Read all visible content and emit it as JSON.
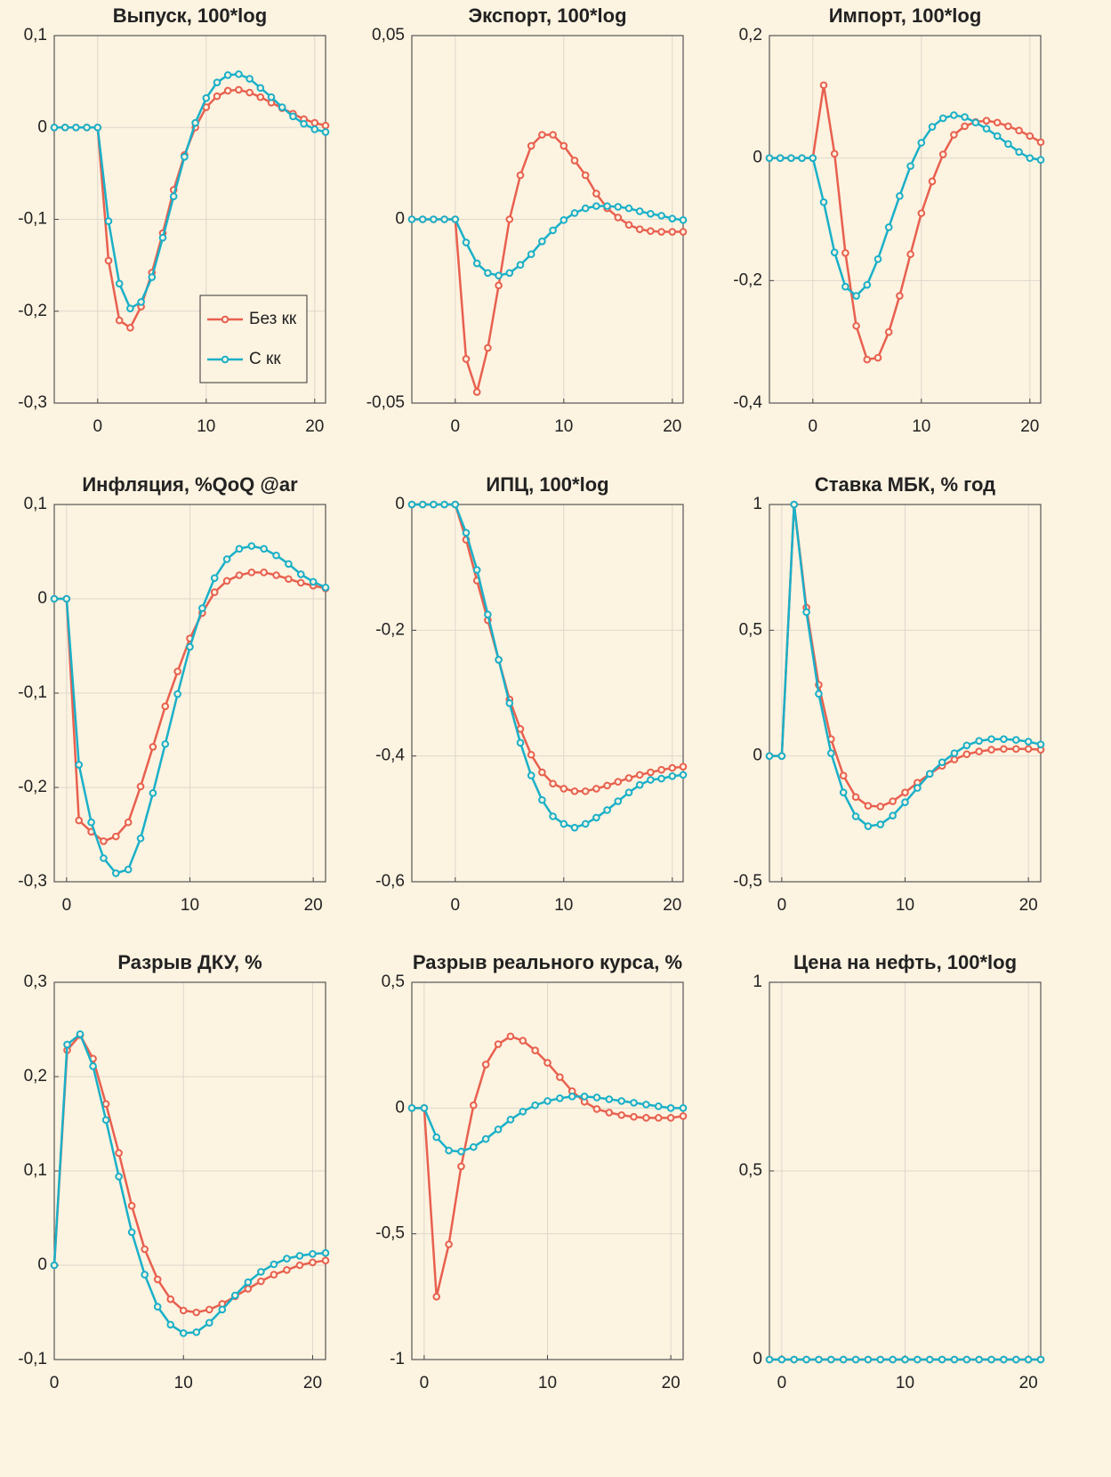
{
  "chart_data": [
    {
      "type": "line",
      "title": "Выпуск, 100*log",
      "x": [
        -4,
        -3,
        -2,
        -1,
        0,
        1,
        2,
        3,
        4,
        5,
        6,
        7,
        8,
        9,
        10,
        11,
        12,
        13,
        14,
        15,
        16,
        17,
        18,
        19,
        20,
        21
      ],
      "series": [
        {
          "name": "Без кк",
          "color": "#e8604f",
          "values": [
            0,
            0,
            0,
            0,
            0,
            -0.145,
            -0.21,
            -0.218,
            -0.195,
            -0.158,
            -0.115,
            -0.068,
            -0.03,
            0,
            0.022,
            0.034,
            0.04,
            0.041,
            0.038,
            0.033,
            0.027,
            0.021,
            0.015,
            0.009,
            0.005,
            0.002
          ]
        },
        {
          "name": "С кк",
          "color": "#1ab0c8",
          "values": [
            0,
            0,
            0,
            0,
            0,
            -0.102,
            -0.17,
            -0.197,
            -0.19,
            -0.163,
            -0.12,
            -0.075,
            -0.032,
            0.005,
            0.032,
            0.049,
            0.057,
            0.058,
            0.053,
            0.043,
            0.033,
            0.022,
            0.012,
            0.004,
            -0.002,
            -0.005
          ]
        }
      ],
      "xlim": [
        -4,
        21
      ],
      "xticks": [
        0,
        10,
        20
      ],
      "ylim": [
        -0.3,
        0.1
      ],
      "yticks": [
        {
          "value": -0.3,
          "label": "-0,3"
        },
        {
          "value": -0.2,
          "label": "-0,2"
        },
        {
          "value": -0.1,
          "label": "-0,1"
        },
        0,
        {
          "value": 0.1,
          "label": "0,1"
        }
      ],
      "grid": true,
      "legend": "lower right"
    },
    {
      "type": "line",
      "title": "Экспорт, 100*log",
      "x": [
        -4,
        -3,
        -2,
        -1,
        0,
        1,
        2,
        3,
        4,
        5,
        6,
        7,
        8,
        9,
        10,
        11,
        12,
        13,
        14,
        15,
        16,
        17,
        18,
        19,
        20,
        21
      ],
      "series": [
        {
          "color": "#e8604f",
          "values": [
            0,
            0,
            0,
            0,
            0,
            -0.038,
            -0.047,
            -0.035,
            -0.018,
            0,
            0.012,
            0.02,
            0.023,
            0.023,
            0.02,
            0.016,
            0.012,
            0.007,
            0.003,
            0.0005,
            -0.0015,
            -0.0027,
            -0.0032,
            -0.0034,
            -0.0034,
            -0.0034
          ]
        },
        {
          "color": "#1ab0c8",
          "values": [
            0,
            0,
            0,
            0,
            0,
            -0.0063,
            -0.012,
            -0.0146,
            -0.0153,
            -0.0146,
            -0.0124,
            -0.0095,
            -0.006,
            -0.003,
            -0.0002,
            0.0017,
            0.003,
            0.0036,
            0.0036,
            0.0034,
            0.003,
            0.0022,
            0.0015,
            0.001,
            0.0002,
            -0.0002
          ]
        }
      ],
      "xlim": [
        -4,
        21
      ],
      "xticks": [
        0,
        10,
        20
      ],
      "ylim": [
        -0.05,
        0.05
      ],
      "yticks": [
        {
          "value": -0.05,
          "label": "-0,05"
        },
        0,
        {
          "value": 0.05,
          "label": "0,05"
        }
      ],
      "grid": true
    },
    {
      "type": "line",
      "title": "Импорт, 100*log",
      "x": [
        -4,
        -3,
        -2,
        -1,
        0,
        1,
        2,
        3,
        4,
        5,
        6,
        7,
        8,
        9,
        10,
        11,
        12,
        13,
        14,
        15,
        16,
        17,
        18,
        19,
        20,
        21
      ],
      "series": [
        {
          "color": "#e8604f",
          "values": [
            0,
            0,
            0,
            0,
            0,
            0.119,
            0.007,
            -0.155,
            -0.274,
            -0.329,
            -0.326,
            -0.284,
            -0.225,
            -0.157,
            -0.09,
            -0.038,
            0.006,
            0.038,
            0.052,
            0.059,
            0.061,
            0.058,
            0.052,
            0.045,
            0.036,
            0.026
          ]
        },
        {
          "color": "#1ab0c8",
          "values": [
            0,
            0,
            0,
            0,
            0,
            -0.072,
            -0.154,
            -0.21,
            -0.225,
            -0.207,
            -0.165,
            -0.113,
            -0.062,
            -0.013,
            0.025,
            0.051,
            0.065,
            0.07,
            0.067,
            0.058,
            0.048,
            0.036,
            0.023,
            0.01,
            0,
            -0.003
          ]
        }
      ],
      "xlim": [
        -4,
        21
      ],
      "xticks": [
        0,
        10,
        20
      ],
      "ylim": [
        -0.4,
        0.2
      ],
      "yticks": [
        {
          "value": -0.4,
          "label": "-0,4"
        },
        {
          "value": -0.2,
          "label": "-0,2"
        },
        0,
        {
          "value": 0.2,
          "label": "0,2"
        }
      ],
      "grid": true
    },
    {
      "type": "line",
      "title": "Инфляция, %QoQ @ar",
      "x": [
        -1,
        0,
        1,
        2,
        3,
        4,
        5,
        6,
        7,
        8,
        9,
        10,
        11,
        12,
        13,
        14,
        15,
        16,
        17,
        18,
        19,
        20,
        21
      ],
      "series": [
        {
          "color": "#e8604f",
          "values": [
            0,
            0,
            -0.235,
            -0.247,
            -0.257,
            -0.252,
            -0.237,
            -0.199,
            -0.157,
            -0.114,
            -0.077,
            -0.042,
            -0.015,
            0.007,
            0.019,
            0.025,
            0.028,
            0.028,
            0.025,
            0.021,
            0.017,
            0.014,
            0.011
          ]
        },
        {
          "color": "#1ab0c8",
          "values": [
            0,
            0,
            -0.176,
            -0.237,
            -0.275,
            -0.291,
            -0.287,
            -0.254,
            -0.206,
            -0.154,
            -0.101,
            -0.051,
            -0.01,
            0.022,
            0.042,
            0.053,
            0.056,
            0.053,
            0.046,
            0.037,
            0.026,
            0.018,
            0.012
          ]
        }
      ],
      "xlim": [
        -1,
        21
      ],
      "xticks": [
        0,
        10,
        20
      ],
      "ylim": [
        -0.3,
        0.1
      ],
      "yticks": [
        {
          "value": -0.3,
          "label": "-0,3"
        },
        {
          "value": -0.2,
          "label": "-0,2"
        },
        {
          "value": -0.1,
          "label": "-0,1"
        },
        0,
        {
          "value": 0.1,
          "label": "0,1"
        }
      ],
      "grid": true
    },
    {
      "type": "line",
      "title": "ИПЦ, 100*log",
      "x": [
        -4,
        -3,
        -2,
        -1,
        0,
        1,
        2,
        3,
        4,
        5,
        6,
        7,
        8,
        9,
        10,
        11,
        12,
        13,
        14,
        15,
        16,
        17,
        18,
        19,
        20,
        21
      ],
      "series": [
        {
          "color": "#e8604f",
          "values": [
            0,
            0,
            0,
            0,
            0,
            -0.056,
            -0.121,
            -0.184,
            -0.247,
            -0.31,
            -0.357,
            -0.398,
            -0.426,
            -0.444,
            -0.452,
            -0.456,
            -0.456,
            -0.452,
            -0.447,
            -0.441,
            -0.435,
            -0.43,
            -0.426,
            -0.422,
            -0.419,
            -0.417
          ]
        },
        {
          "color": "#1ab0c8",
          "values": [
            0,
            0,
            0,
            0,
            0,
            -0.045,
            -0.104,
            -0.175,
            -0.247,
            -0.316,
            -0.379,
            -0.431,
            -0.47,
            -0.496,
            -0.508,
            -0.514,
            -0.508,
            -0.498,
            -0.486,
            -0.472,
            -0.458,
            -0.446,
            -0.438,
            -0.436,
            -0.432,
            -0.43
          ]
        }
      ],
      "xlim": [
        -4,
        21
      ],
      "xticks": [
        0,
        10,
        20
      ],
      "ylim": [
        -0.6,
        0
      ],
      "yticks": [
        {
          "value": -0.6,
          "label": "-0,6"
        },
        {
          "value": -0.4,
          "label": "-0,4"
        },
        {
          "value": -0.2,
          "label": "-0,2"
        },
        0
      ],
      "grid": true
    },
    {
      "type": "line",
      "title": "Ставка МБК, % год",
      "x": [
        -1,
        0,
        1,
        2,
        3,
        4,
        5,
        6,
        7,
        8,
        9,
        10,
        11,
        12,
        13,
        14,
        15,
        16,
        17,
        18,
        19,
        20,
        21
      ],
      "series": [
        {
          "color": "#e8604f",
          "values": [
            0,
            0,
            1,
            0.59,
            0.283,
            0.067,
            -0.078,
            -0.163,
            -0.198,
            -0.201,
            -0.18,
            -0.145,
            -0.106,
            -0.071,
            -0.039,
            -0.014,
            0.007,
            0.018,
            0.025,
            0.028,
            0.028,
            0.028,
            0.025
          ]
        },
        {
          "color": "#1ab0c8",
          "values": [
            0,
            0,
            1,
            0.572,
            0.247,
            0.011,
            -0.145,
            -0.24,
            -0.279,
            -0.272,
            -0.237,
            -0.184,
            -0.127,
            -0.071,
            -0.025,
            0.011,
            0.042,
            0.06,
            0.067,
            0.067,
            0.064,
            0.057,
            0.046
          ]
        }
      ],
      "xlim": [
        -1,
        21
      ],
      "xticks": [
        0,
        10,
        20
      ],
      "ylim": [
        -0.5,
        1
      ],
      "yticks": [
        {
          "value": -0.5,
          "label": "-0,5"
        },
        0,
        {
          "value": 0.5,
          "label": "0,5"
        },
        1
      ],
      "grid": true
    },
    {
      "type": "line",
      "title": "Разрыв ДКУ, %",
      "x": [
        0,
        1,
        2,
        3,
        4,
        5,
        6,
        7,
        8,
        9,
        10,
        11,
        12,
        13,
        14,
        15,
        16,
        17,
        18,
        19,
        20,
        21
      ],
      "series": [
        {
          "color": "#e8604f",
          "values": [
            0,
            0.228,
            0.244,
            0.219,
            0.171,
            0.119,
            0.063,
            0.017,
            -0.015,
            -0.036,
            -0.048,
            -0.05,
            -0.047,
            -0.041,
            -0.033,
            -0.025,
            -0.017,
            -0.01,
            -0.005,
            0,
            0.003,
            0.005
          ]
        },
        {
          "color": "#1ab0c8",
          "values": [
            0,
            0.234,
            0.245,
            0.211,
            0.154,
            0.094,
            0.035,
            -0.01,
            -0.044,
            -0.063,
            -0.072,
            -0.071,
            -0.061,
            -0.047,
            -0.032,
            -0.018,
            -0.007,
            0.001,
            0.007,
            0.01,
            0.012,
            0.013
          ]
        }
      ],
      "xlim": [
        0,
        21
      ],
      "xticks": [
        0,
        10,
        20
      ],
      "ylim": [
        -0.1,
        0.3
      ],
      "yticks": [
        {
          "value": -0.1,
          "label": "-0,1"
        },
        0,
        {
          "value": 0.1,
          "label": "0,1"
        },
        {
          "value": 0.2,
          "label": "0,2"
        },
        {
          "value": 0.3,
          "label": "0,3"
        }
      ],
      "grid": true
    },
    {
      "type": "line",
      "title": "Разрыв реального курса, %",
      "x": [
        -1,
        0,
        1,
        2,
        3,
        4,
        5,
        6,
        7,
        8,
        9,
        10,
        11,
        12,
        13,
        14,
        15,
        16,
        17,
        18,
        19,
        20,
        21
      ],
      "series": [
        {
          "color": "#e8604f",
          "values": [
            0,
            0,
            -0.75,
            -0.542,
            -0.232,
            0.011,
            0.173,
            0.254,
            0.285,
            0.268,
            0.229,
            0.18,
            0.123,
            0.067,
            0.025,
            -0.004,
            -0.018,
            -0.028,
            -0.035,
            -0.039,
            -0.039,
            -0.039,
            -0.032
          ]
        },
        {
          "color": "#1ab0c8",
          "values": [
            0,
            0,
            -0.116,
            -0.169,
            -0.173,
            -0.155,
            -0.123,
            -0.085,
            -0.046,
            -0.014,
            0.011,
            0.028,
            0.039,
            0.046,
            0.046,
            0.042,
            0.035,
            0.028,
            0.021,
            0.014,
            0.007,
            0,
            0
          ]
        }
      ],
      "xlim": [
        -1,
        21
      ],
      "xticks": [
        0,
        10,
        20
      ],
      "ylim": [
        -1,
        0.5
      ],
      "yticks": [
        -1,
        {
          "value": -0.5,
          "label": "-0,5"
        },
        0,
        {
          "value": 0.5,
          "label": "0,5"
        }
      ],
      "grid": true
    },
    {
      "type": "line",
      "title": "Цена на нефть, 100*log",
      "x": [
        -1,
        0,
        1,
        2,
        3,
        4,
        5,
        6,
        7,
        8,
        9,
        10,
        11,
        12,
        13,
        14,
        15,
        16,
        17,
        18,
        19,
        20,
        21
      ],
      "series": [
        {
          "color": "#e8604f",
          "values": [
            0,
            0,
            0,
            0,
            0,
            0,
            0,
            0,
            0,
            0,
            0,
            0,
            0,
            0,
            0,
            0,
            0,
            0,
            0,
            0,
            0,
            0,
            0
          ]
        },
        {
          "color": "#1ab0c8",
          "values": [
            0,
            0,
            0,
            0,
            0,
            0,
            0,
            0,
            0,
            0,
            0,
            0,
            0,
            0,
            0,
            0,
            0,
            0,
            0,
            0,
            0,
            0,
            0
          ]
        }
      ],
      "xlim": [
        -1,
        21
      ],
      "xticks": [
        0,
        10,
        20
      ],
      "ylim": [
        0,
        1
      ],
      "yticks": [
        0,
        {
          "value": 0.5,
          "label": "0,5"
        },
        1
      ],
      "grid": true
    }
  ]
}
